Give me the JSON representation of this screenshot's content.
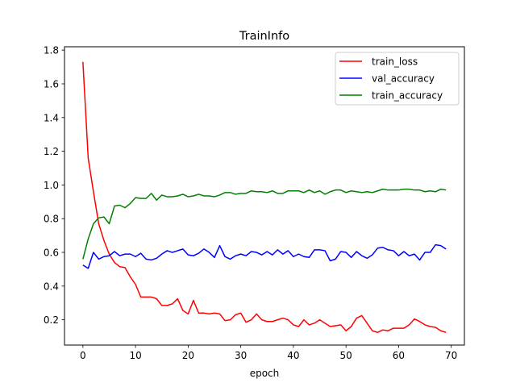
{
  "chart_data": {
    "type": "line",
    "title": "TrainInfo",
    "xlabel": "epoch",
    "ylabel": "",
    "xlim": [
      -3.5,
      72.5
    ],
    "ylim": [
      0.05,
      1.82
    ],
    "xticks": [
      0,
      10,
      20,
      30,
      40,
      50,
      60,
      70
    ],
    "yticks": [
      0.2,
      0.4,
      0.6,
      0.8,
      1.0,
      1.2,
      1.4,
      1.6,
      1.8
    ],
    "ytick_labels": [
      "0.2",
      "0.4",
      "0.6",
      "0.8",
      "1.0",
      "1.2",
      "1.4",
      "1.6",
      "1.8"
    ],
    "grid": false,
    "legend_position": "top-right",
    "x": [
      0,
      1,
      2,
      3,
      4,
      5,
      6,
      7,
      8,
      9,
      10,
      11,
      12,
      13,
      14,
      15,
      16,
      17,
      18,
      19,
      20,
      21,
      22,
      23,
      24,
      25,
      26,
      27,
      28,
      29,
      30,
      31,
      32,
      33,
      34,
      35,
      36,
      37,
      38,
      39,
      40,
      41,
      42,
      43,
      44,
      45,
      46,
      47,
      48,
      49,
      50,
      51,
      52,
      53,
      54,
      55,
      56,
      57,
      58,
      59,
      60,
      61,
      62,
      63,
      64,
      65,
      66,
      67,
      68,
      69
    ],
    "series": [
      {
        "name": "train_loss",
        "color": "#ff0000",
        "values": [
          1.73,
          1.16,
          0.96,
          0.77,
          0.67,
          0.59,
          0.54,
          0.515,
          0.51,
          0.455,
          0.41,
          0.335,
          0.335,
          0.335,
          0.325,
          0.285,
          0.285,
          0.295,
          0.325,
          0.255,
          0.235,
          0.315,
          0.24,
          0.24,
          0.235,
          0.24,
          0.235,
          0.195,
          0.2,
          0.23,
          0.24,
          0.185,
          0.2,
          0.235,
          0.2,
          0.19,
          0.19,
          0.2,
          0.21,
          0.2,
          0.17,
          0.16,
          0.2,
          0.17,
          0.18,
          0.2,
          0.18,
          0.16,
          0.165,
          0.17,
          0.135,
          0.16,
          0.21,
          0.225,
          0.18,
          0.135,
          0.125,
          0.14,
          0.135,
          0.15,
          0.15,
          0.15,
          0.17,
          0.205,
          0.19,
          0.17,
          0.16,
          0.155,
          0.135,
          0.125
        ]
      },
      {
        "name": "val_accuracy",
        "color": "#0000ff",
        "values": [
          0.525,
          0.505,
          0.6,
          0.56,
          0.575,
          0.58,
          0.605,
          0.58,
          0.59,
          0.59,
          0.575,
          0.595,
          0.56,
          0.555,
          0.565,
          0.59,
          0.61,
          0.6,
          0.61,
          0.62,
          0.585,
          0.58,
          0.595,
          0.62,
          0.6,
          0.57,
          0.64,
          0.575,
          0.56,
          0.58,
          0.59,
          0.58,
          0.605,
          0.6,
          0.585,
          0.605,
          0.585,
          0.615,
          0.59,
          0.61,
          0.575,
          0.59,
          0.575,
          0.57,
          0.615,
          0.615,
          0.61,
          0.55,
          0.56,
          0.605,
          0.6,
          0.57,
          0.605,
          0.58,
          0.565,
          0.585,
          0.625,
          0.63,
          0.615,
          0.61,
          0.58,
          0.605,
          0.58,
          0.59,
          0.555,
          0.6,
          0.6,
          0.645,
          0.64,
          0.62
        ]
      },
      {
        "name": "train_accuracy",
        "color": "#008000",
        "values": [
          0.56,
          0.68,
          0.77,
          0.805,
          0.81,
          0.77,
          0.875,
          0.88,
          0.865,
          0.89,
          0.925,
          0.92,
          0.92,
          0.95,
          0.91,
          0.94,
          0.93,
          0.93,
          0.935,
          0.945,
          0.93,
          0.935,
          0.945,
          0.935,
          0.935,
          0.93,
          0.94,
          0.955,
          0.955,
          0.945,
          0.95,
          0.95,
          0.965,
          0.96,
          0.96,
          0.955,
          0.965,
          0.95,
          0.95,
          0.965,
          0.965,
          0.965,
          0.955,
          0.97,
          0.955,
          0.965,
          0.945,
          0.96,
          0.97,
          0.97,
          0.955,
          0.965,
          0.96,
          0.955,
          0.96,
          0.955,
          0.965,
          0.975,
          0.97,
          0.97,
          0.97,
          0.975,
          0.975,
          0.97,
          0.97,
          0.96,
          0.965,
          0.96,
          0.975,
          0.97
        ]
      }
    ]
  }
}
